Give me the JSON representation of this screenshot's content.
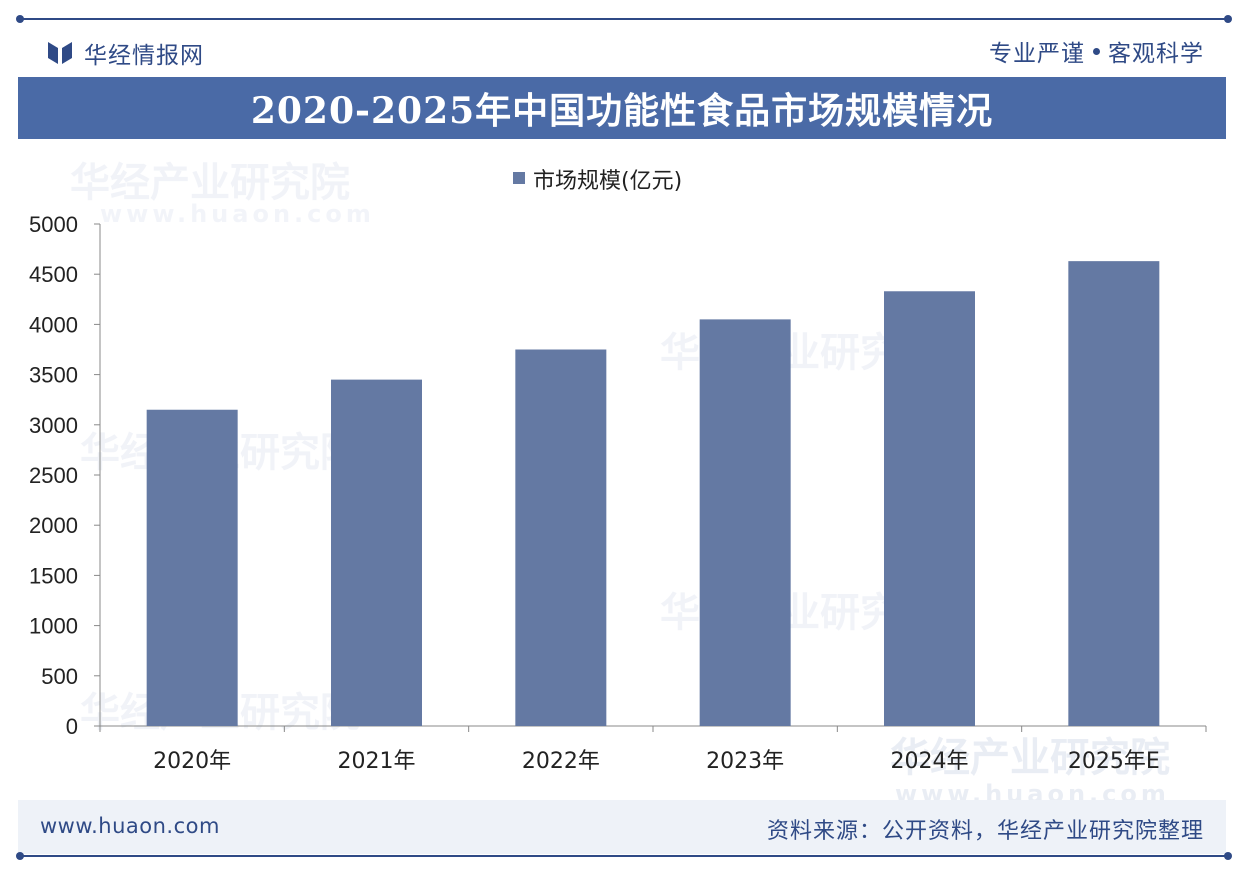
{
  "header": {
    "brand": "华经情报网",
    "slogan_left": "专业严谨",
    "slogan_right": "客观科学"
  },
  "title": "2020-2025年中国功能性食品市场规模情况",
  "chart_data": {
    "type": "bar",
    "legend": "市场规模(亿元)",
    "categories": [
      "2020年",
      "2021年",
      "2022年",
      "2023年",
      "2024年",
      "2025年E"
    ],
    "series": [
      {
        "name": "市场规模(亿元)",
        "values": [
          3150,
          3450,
          3750,
          4050,
          4330,
          4630
        ]
      }
    ],
    "ylim": [
      0,
      5000
    ],
    "yticks": [
      0,
      500,
      1000,
      1500,
      2000,
      2500,
      3000,
      3500,
      4000,
      4500,
      5000
    ],
    "bar_color": "#6479a3",
    "grid": false,
    "legend_position": "top-center"
  },
  "watermark": {
    "text": "华经产业研究院",
    "url": "www.huaon.com"
  },
  "footer": {
    "website": "www.huaon.com",
    "source": "资料来源：公开资料，华经产业研究院整理"
  },
  "colors": {
    "brand": "#2f4a86",
    "title_band": "#4a6aa6",
    "bar": "#6479a3"
  }
}
